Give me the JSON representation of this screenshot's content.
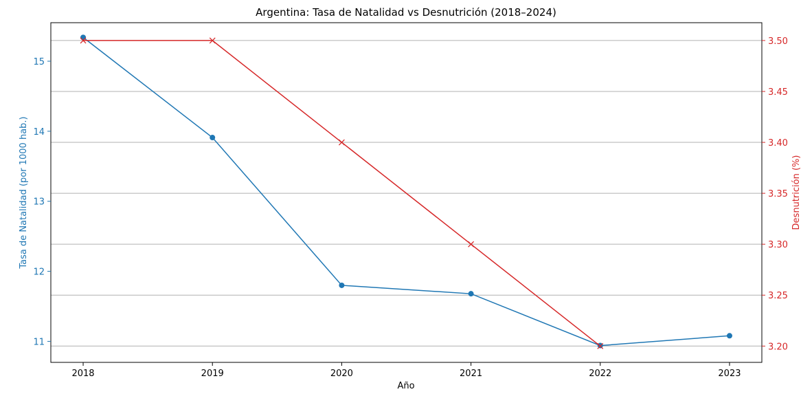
{
  "chart_data": {
    "type": "line",
    "title": "Argentina: Tasa de Natalidad vs Desnutrición (2018–2024)",
    "xlabel": "Año",
    "x": [
      2018,
      2019,
      2020,
      2021,
      2022,
      2023
    ],
    "x_ticks": [
      "2018",
      "2019",
      "2020",
      "2021",
      "2022",
      "2023"
    ],
    "y_left": {
      "label": "Tasa de Natalidad (por 1000 hab.)",
      "color": "#1f77b4",
      "ylim": [
        10.7,
        15.55
      ],
      "ticks": [
        11,
        12,
        13,
        14,
        15
      ],
      "tick_labels": [
        "11",
        "12",
        "13",
        "14",
        "15"
      ]
    },
    "y_right": {
      "label": "Desnutrición (%)",
      "color": "#d62728",
      "ylim": [
        3.184,
        3.5175
      ],
      "ticks": [
        3.2,
        3.25,
        3.3,
        3.35,
        3.4,
        3.45,
        3.5
      ],
      "tick_labels": [
        "3.20",
        "3.25",
        "3.30",
        "3.35",
        "3.40",
        "3.45",
        "3.50"
      ]
    },
    "series": [
      {
        "axis": "left",
        "marker": "circle",
        "color": "#1f77b4",
        "x": [
          2018,
          2019,
          2020,
          2021,
          2022,
          2023
        ],
        "values": [
          15.34,
          13.91,
          11.8,
          11.68,
          10.94,
          11.08
        ]
      },
      {
        "axis": "right",
        "marker": "x",
        "color": "#d62728",
        "x": [
          2018,
          2019,
          2020,
          2021,
          2022
        ],
        "values": [
          3.5,
          3.5,
          3.4,
          3.3,
          3.2
        ]
      }
    ],
    "grid": "horizontal (right axis)",
    "legend": "none"
  }
}
